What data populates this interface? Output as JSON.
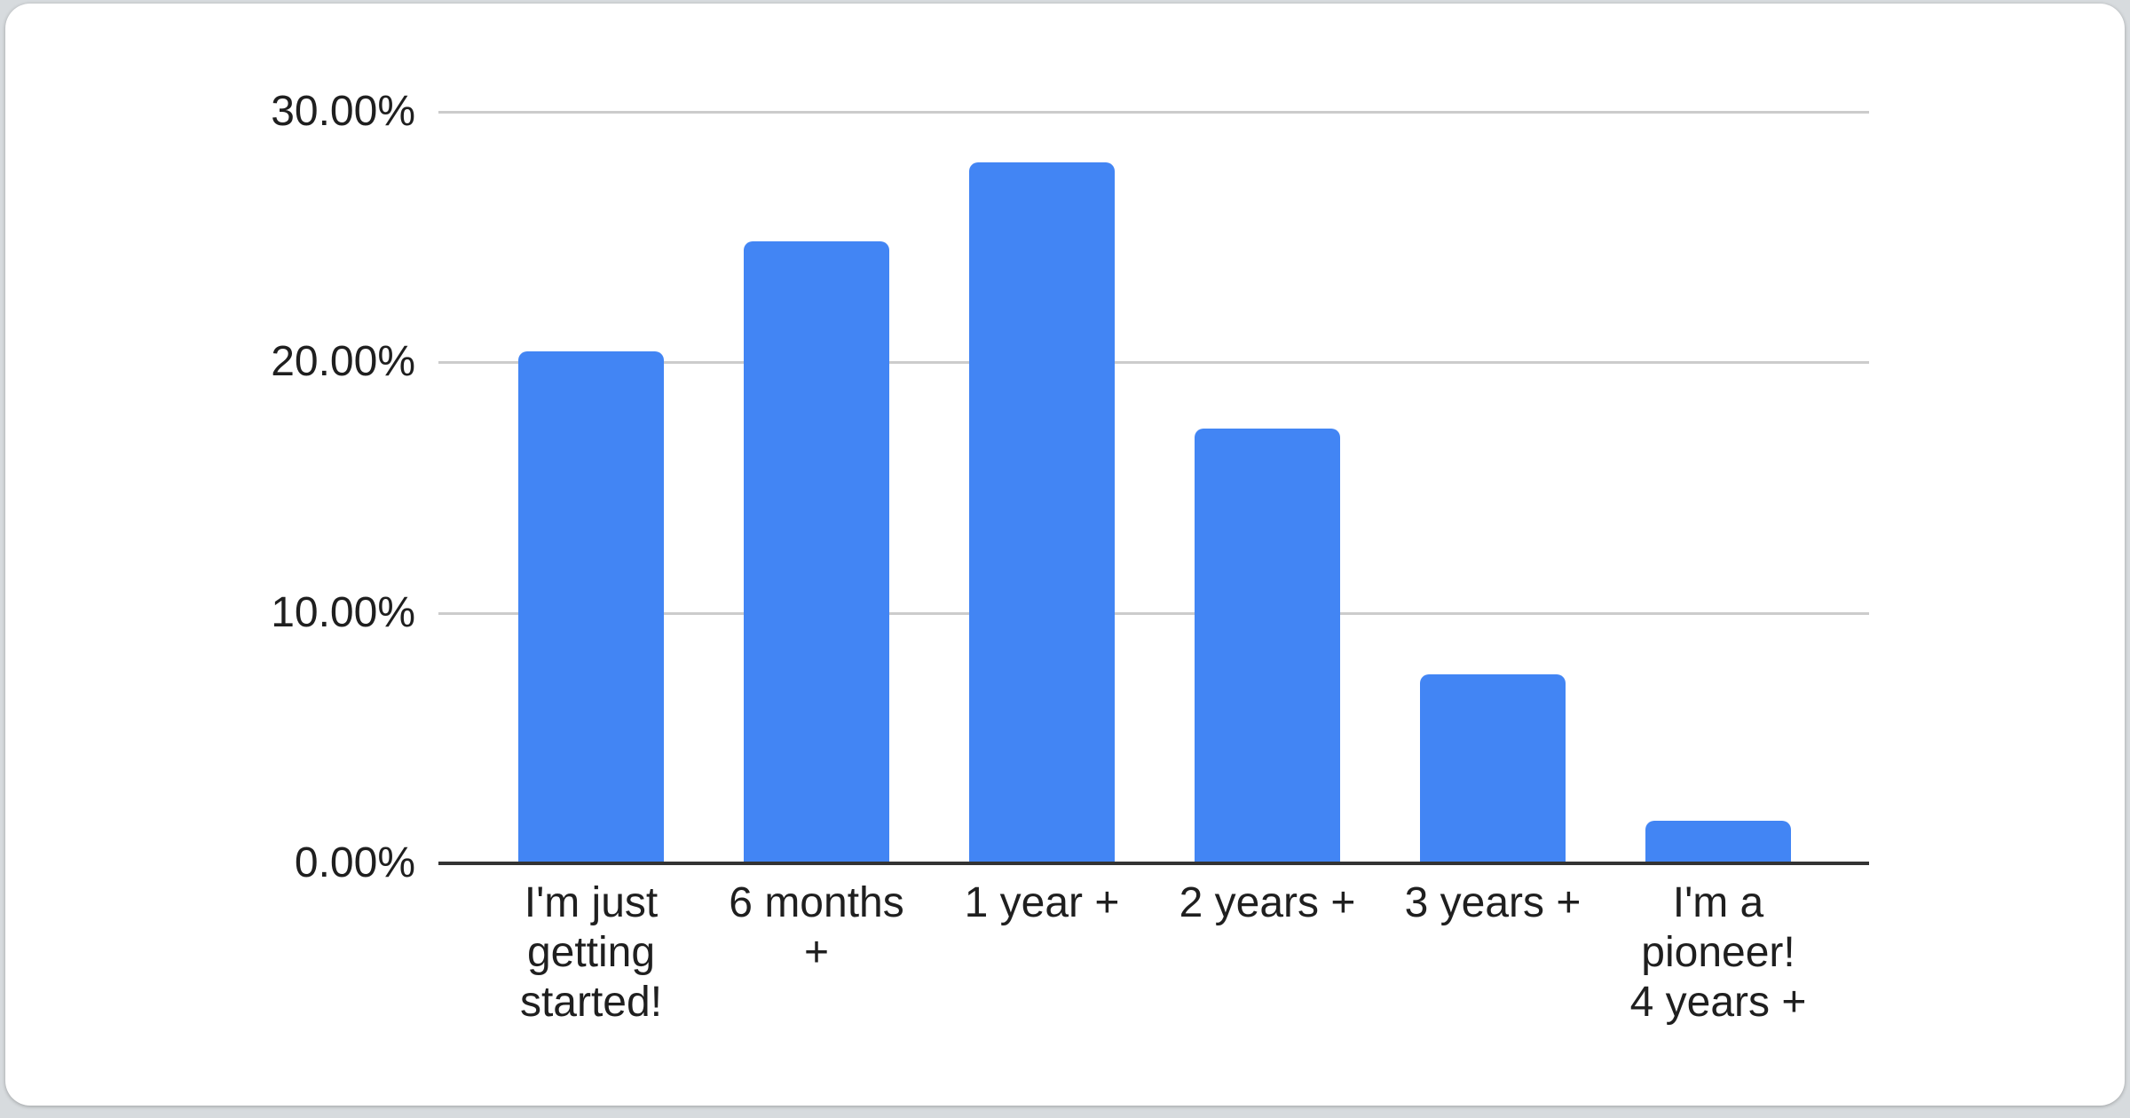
{
  "page": {
    "background_color": "#d7dbde",
    "card_color": "#ffffff"
  },
  "chart_data": {
    "type": "bar",
    "title": "",
    "xlabel": "",
    "ylabel": "",
    "categories": [
      "I'm just getting started!",
      "6 months +",
      "1 year +",
      "2 years +",
      "3 years +",
      "I'm a pioneer! 4 years +"
    ],
    "category_lines": [
      [
        "I'm just",
        "getting",
        "started!"
      ],
      [
        "6 months",
        "+"
      ],
      [
        "1 year +"
      ],
      [
        "2 years +"
      ],
      [
        "3 years +"
      ],
      [
        "I'm a",
        "pioneer!",
        "4 years +"
      ]
    ],
    "values": [
      20.45,
      24.82,
      27.98,
      17.35,
      7.54,
      1.71
    ],
    "value_unit": "%",
    "ylim": [
      0,
      30
    ],
    "y_ticks": [
      {
        "value": 30,
        "label": "30.00%"
      },
      {
        "value": 20,
        "label": "20.00%"
      },
      {
        "value": 10,
        "label": "10.00%"
      },
      {
        "value": 0,
        "label": "0.00%"
      }
    ],
    "grid": true,
    "legend": "none",
    "bar_color": "#4285f4",
    "grid_color": "#cccccc",
    "axis_line_color": "#333333",
    "text_color": "#1f1f1f"
  }
}
